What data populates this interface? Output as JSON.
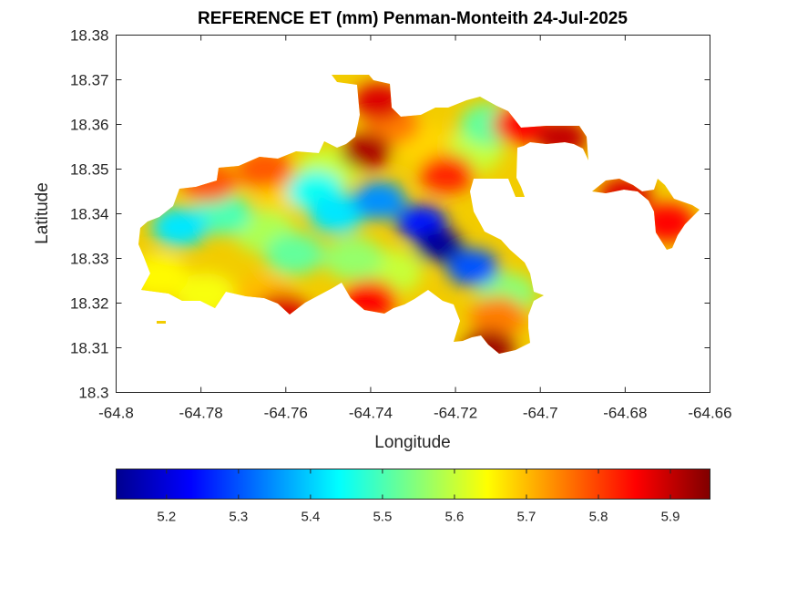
{
  "chart_data": {
    "type": "heatmap",
    "title": "REFERENCE ET (mm) Penman-Monteith 24-Jul-2025",
    "xlabel": "Longitude",
    "ylabel": "Latitude",
    "xlim": [
      -64.8,
      -64.66
    ],
    "ylim": [
      18.3,
      18.38
    ],
    "xticks": [
      "-64.8",
      "-64.78",
      "-64.76",
      "-64.74",
      "-64.72",
      "-64.7",
      "-64.68",
      "-64.66"
    ],
    "yticks": [
      "18.3",
      "18.31",
      "18.32",
      "18.33",
      "18.34",
      "18.35",
      "18.36",
      "18.37",
      "18.38"
    ],
    "colormap": "jet",
    "colorbar": {
      "location": "bottom",
      "range": [
        5.13,
        5.955
      ],
      "ticks": [
        "5.2",
        "5.3",
        "5.4",
        "5.5",
        "5.6",
        "5.7",
        "5.8",
        "5.9"
      ]
    },
    "regions": [
      {
        "lon": -64.724,
        "lat": 18.333,
        "value": 5.14
      },
      {
        "lon": -64.728,
        "lat": 18.338,
        "value": 5.25
      },
      {
        "lon": -64.716,
        "lat": 18.328,
        "value": 5.3
      },
      {
        "lon": -64.738,
        "lat": 18.343,
        "value": 5.35
      },
      {
        "lon": -64.748,
        "lat": 18.34,
        "value": 5.42
      },
      {
        "lon": -64.753,
        "lat": 18.345,
        "value": 5.45
      },
      {
        "lon": -64.785,
        "lat": 18.337,
        "value": 5.42
      },
      {
        "lon": -64.775,
        "lat": 18.34,
        "value": 5.5
      },
      {
        "lon": -64.765,
        "lat": 18.336,
        "value": 5.58
      },
      {
        "lon": -64.758,
        "lat": 18.331,
        "value": 5.52
      },
      {
        "lon": -64.744,
        "lat": 18.33,
        "value": 5.56
      },
      {
        "lon": -64.735,
        "lat": 18.327,
        "value": 5.6
      },
      {
        "lon": -64.712,
        "lat": 18.36,
        "value": 5.52
      },
      {
        "lon": -64.716,
        "lat": 18.354,
        "value": 5.6
      },
      {
        "lon": -64.728,
        "lat": 18.356,
        "value": 5.68
      },
      {
        "lon": -64.79,
        "lat": 18.326,
        "value": 5.65
      },
      {
        "lon": -64.779,
        "lat": 18.322,
        "value": 5.64
      },
      {
        "lon": -64.765,
        "lat": 18.322,
        "value": 5.7
      },
      {
        "lon": -64.76,
        "lat": 18.345,
        "value": 5.68
      },
      {
        "lon": -64.708,
        "lat": 18.322,
        "value": 5.55
      },
      {
        "lon": -64.71,
        "lat": 18.317,
        "value": 5.75
      },
      {
        "lon": -64.735,
        "lat": 18.36,
        "value": 5.75
      },
      {
        "lon": -64.722,
        "lat": 18.349,
        "value": 5.82
      },
      {
        "lon": -64.738,
        "lat": 18.365,
        "value": 5.88
      },
      {
        "lon": -64.741,
        "lat": 18.354,
        "value": 5.92
      },
      {
        "lon": -64.74,
        "lat": 18.321,
        "value": 5.85
      },
      {
        "lon": -64.712,
        "lat": 18.31,
        "value": 5.93
      },
      {
        "lon": -64.705,
        "lat": 18.36,
        "value": 5.85
      },
      {
        "lon": -64.695,
        "lat": 18.357,
        "value": 5.9
      },
      {
        "lon": -64.778,
        "lat": 18.347,
        "value": 5.78
      },
      {
        "lon": -64.761,
        "lat": 18.318,
        "value": 5.88
      },
      {
        "lon": -64.67,
        "lat": 18.338,
        "value": 5.85
      },
      {
        "lon": -64.68,
        "lat": 18.344,
        "value": 5.88
      },
      {
        "lon": -64.75,
        "lat": 18.35,
        "value": 5.6
      },
      {
        "lon": -64.765,
        "lat": 18.35,
        "value": 5.78
      }
    ]
  }
}
